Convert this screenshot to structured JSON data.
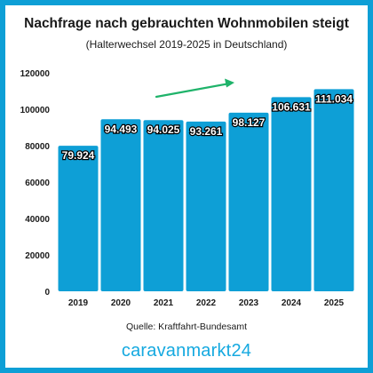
{
  "colors": {
    "background_border": "#0e9fd6",
    "bar": "#0e9fd6",
    "bar_label_stroke": "#000000",
    "bar_label_fill": "#ffffff",
    "arrow": "#1fb36a",
    "brand": "#15a9e0"
  },
  "source_text": "Quelle: Kraftfahrt-Bundesamt",
  "brand_text": "caravanmarkt24",
  "chart_data": {
    "type": "bar",
    "title": "Nachfrage nach gebrauchten Wohnmobilen steigt",
    "subtitle": "(Halterwechsel 2019-2025 in Deutschland)",
    "xlabel": "",
    "ylabel": "",
    "categories": [
      "2019",
      "2020",
      "2021",
      "2022",
      "2023",
      "2024",
      "2025"
    ],
    "values": [
      79924,
      94493,
      94025,
      93261,
      98127,
      106631,
      111034
    ],
    "value_labels": [
      "79.924",
      "94.493",
      "94.025",
      "93.261",
      "98.127",
      "106.631",
      "111.034"
    ],
    "ylim": [
      0,
      120000
    ],
    "yticks": [
      0,
      20000,
      40000,
      60000,
      80000,
      100000,
      120000
    ],
    "ytick_labels": [
      "0",
      "20000",
      "40000",
      "60000",
      "80000",
      "100000",
      "120000"
    ],
    "grid": false,
    "legend": "none",
    "annotation": "trend-arrow"
  }
}
